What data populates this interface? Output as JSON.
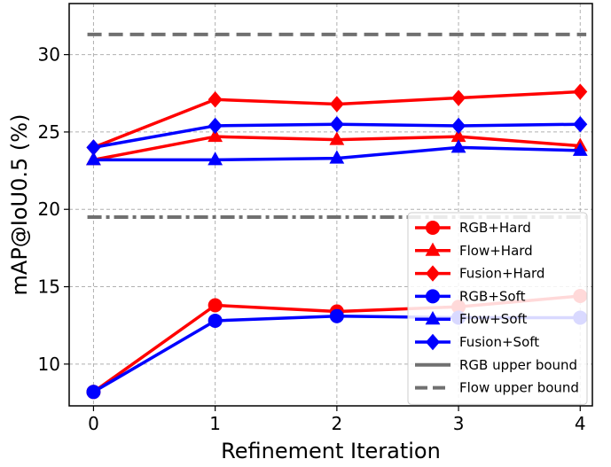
{
  "chart_data": {
    "type": "line",
    "xlabel": "Refinement Iteration",
    "ylabel": "mAP@IoU0.5 (%)",
    "x": [
      0,
      1,
      2,
      3,
      4
    ],
    "xlim": [
      -0.2,
      4.1
    ],
    "ylim": [
      7.3,
      33.3
    ],
    "xticks": [
      0,
      1,
      2,
      3,
      4
    ],
    "yticks": [
      10,
      15,
      20,
      25,
      30
    ],
    "grid": true,
    "legend_position": "lower-right",
    "series": [
      {
        "name": "RGB+Hard",
        "color": "#ff0000",
        "marker": "circle",
        "values": [
          8.2,
          13.8,
          13.4,
          13.7,
          14.4
        ]
      },
      {
        "name": "Flow+Hard",
        "color": "#ff0000",
        "marker": "triangle",
        "values": [
          23.2,
          24.7,
          24.5,
          24.7,
          24.1
        ]
      },
      {
        "name": "Fusion+Hard",
        "color": "#ff0000",
        "marker": "diamond",
        "values": [
          24.0,
          27.1,
          26.8,
          27.2,
          27.6
        ]
      },
      {
        "name": "RGB+Soft",
        "color": "#0000ff",
        "marker": "circle",
        "values": [
          8.2,
          12.8,
          13.1,
          13.0,
          13.0
        ]
      },
      {
        "name": "Flow+Soft",
        "color": "#0000ff",
        "marker": "triangle",
        "values": [
          23.2,
          23.2,
          23.3,
          24.0,
          23.8
        ]
      },
      {
        "name": "Fusion+Soft",
        "color": "#0000ff",
        "marker": "diamond",
        "values": [
          24.0,
          25.4,
          25.5,
          25.4,
          25.5
        ]
      }
    ],
    "reference_lines": [
      {
        "name": "RGB upper bound",
        "value": 19.5,
        "color": "#707070",
        "style": "dashdot"
      },
      {
        "name": "Flow upper bound",
        "value": 31.3,
        "color": "#707070",
        "style": "dashed"
      }
    ]
  }
}
